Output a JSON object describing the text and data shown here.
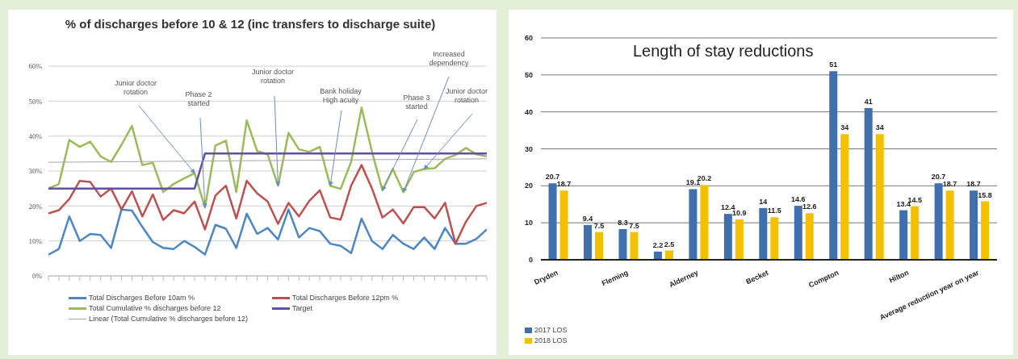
{
  "chart_data": [
    {
      "type": "line",
      "title": "% of discharges before 10 & 12 (inc transfers to discharge suite)",
      "categories": [
        null,
        null,
        null,
        null,
        null,
        null,
        null,
        null,
        null,
        null,
        null,
        null,
        null,
        null,
        null,
        null,
        null,
        null,
        null,
        null,
        null,
        null,
        null,
        null,
        null,
        null,
        null,
        null,
        null,
        null,
        null,
        null,
        null,
        null,
        null,
        null,
        null,
        null,
        null,
        null,
        null,
        null,
        null
      ],
      "series": [
        {
          "name": "Total Discharges Before 10am %",
          "color": "#4a86c8",
          "values": [
            6.1,
            7.7,
            17,
            10,
            12,
            11.7,
            8,
            19,
            18.7,
            14,
            9.7,
            8,
            7.7,
            10,
            8.3,
            6.1,
            14.6,
            13.5,
            8,
            17.8,
            12,
            13.7,
            10.4,
            19,
            11,
            13.7,
            12.8,
            9.2,
            8.6,
            6.5,
            16.4,
            10,
            7.7,
            11.7,
            9.2,
            7.7,
            11,
            7.7,
            13.7,
            9.2,
            9.2,
            10.6,
            13.3
          ]
        },
        {
          "name": "Total Discharges Before 12pm %",
          "color": "#c0504d",
          "values": [
            17.9,
            18.8,
            22,
            27.2,
            26.9,
            22.7,
            25,
            19,
            24.2,
            17,
            23.3,
            16,
            18.8,
            17.9,
            21.3,
            13.3,
            23,
            25.8,
            16.4,
            27.2,
            23.6,
            21.3,
            14.9,
            20.9,
            17,
            21.5,
            24.5,
            16.7,
            16.1,
            25.8,
            31.7,
            25,
            16.7,
            19,
            15,
            19.7,
            19.7,
            16.4,
            20.9,
            9.2,
            15.5,
            20,
            20.9
          ]
        },
        {
          "name": "Total Cumulative % discharges before 12",
          "color": "#9bbb59",
          "values": [
            25,
            26.3,
            38.9,
            36.9,
            38.4,
            34.2,
            32.6,
            37.5,
            42.9,
            31.7,
            32.4,
            24,
            26.3,
            27.9,
            29.4,
            19.6,
            37.3,
            38.7,
            24,
            44.5,
            35.7,
            34.8,
            25.8,
            40.9,
            36.2,
            35.5,
            36.9,
            25.8,
            24.9,
            32.6,
            48.1,
            35.5,
            24.5,
            30.6,
            24,
            29.7,
            30.6,
            30.8,
            33.5,
            34.6,
            36.6,
            34.8,
            34.2
          ]
        },
        {
          "name": "Target",
          "color": "#5f4fa8",
          "values": [
            25,
            25,
            25,
            25,
            25,
            25,
            25,
            25,
            25,
            25,
            25,
            25,
            25,
            25,
            25,
            35,
            35,
            35,
            35,
            35,
            35,
            35,
            35,
            35,
            35,
            35,
            35,
            35,
            35,
            35,
            35,
            35,
            35,
            35,
            35,
            35,
            35,
            35,
            35,
            35,
            35,
            35,
            35
          ]
        },
        {
          "name": "Linear (Total Cumulative % discharges before 12)",
          "color": "#a6a6a6",
          "type": "line",
          "values": [
            32.5,
            null,
            null,
            null,
            null,
            null,
            null,
            null,
            null,
            null,
            null,
            null,
            null,
            null,
            null,
            null,
            null,
            null,
            null,
            null,
            null,
            null,
            null,
            null,
            null,
            null,
            null,
            null,
            null,
            null,
            null,
            null,
            null,
            null,
            null,
            null,
            null,
            null,
            null,
            null,
            null,
            null,
            33.5
          ]
        }
      ],
      "ylim": [
        0,
        60
      ],
      "yticks": [
        {
          "value": 0,
          "label": "0%"
        },
        {
          "value": 10,
          "label": "10%"
        },
        {
          "value": 20,
          "label": "20%"
        },
        {
          "value": 30,
          "label": "30%"
        },
        {
          "value": 40,
          "label": "40%"
        },
        {
          "value": 50,
          "label": "50%"
        },
        {
          "value": 60,
          "label": "60%"
        }
      ],
      "grid": "y",
      "legend": "bottom",
      "marker": "none",
      "annotations": [
        "Junior doctor rotation",
        "Phase 2 started",
        "Junior doctor rotation",
        "Bank holiday High acuity",
        "Phase 3 started",
        "Increased dependency",
        "Junior doctor rotation"
      ]
    },
    {
      "type": "bar",
      "title": "Length of stay reductions",
      "categories": [
        "Dryden",
        null,
        "Fleming",
        null,
        "Alderney",
        null,
        "Becket",
        null,
        "Compton",
        null,
        "Hilton",
        null,
        "Average reduction year on year"
      ],
      "series": [
        {
          "name": "2017 LOS",
          "color": "#3f6fad",
          "values": [
            20.7,
            9.4,
            8.3,
            2.2,
            19.1,
            12.4,
            14,
            14.6,
            51,
            41,
            13.4,
            20.7,
            18.7
          ]
        },
        {
          "name": "2018 LOS",
          "color": "#f5c000",
          "values": [
            18.7,
            7.5,
            7.5,
            2.5,
            20.2,
            10.9,
            11.5,
            12.6,
            34,
            34,
            14.5,
            18.7,
            15.8
          ]
        }
      ],
      "ylim": [
        0,
        60
      ],
      "yticks": [
        0,
        10,
        20,
        30,
        40,
        50,
        60
      ],
      "grid": "y",
      "legend": "bottom left",
      "data_labels": true
    }
  ]
}
